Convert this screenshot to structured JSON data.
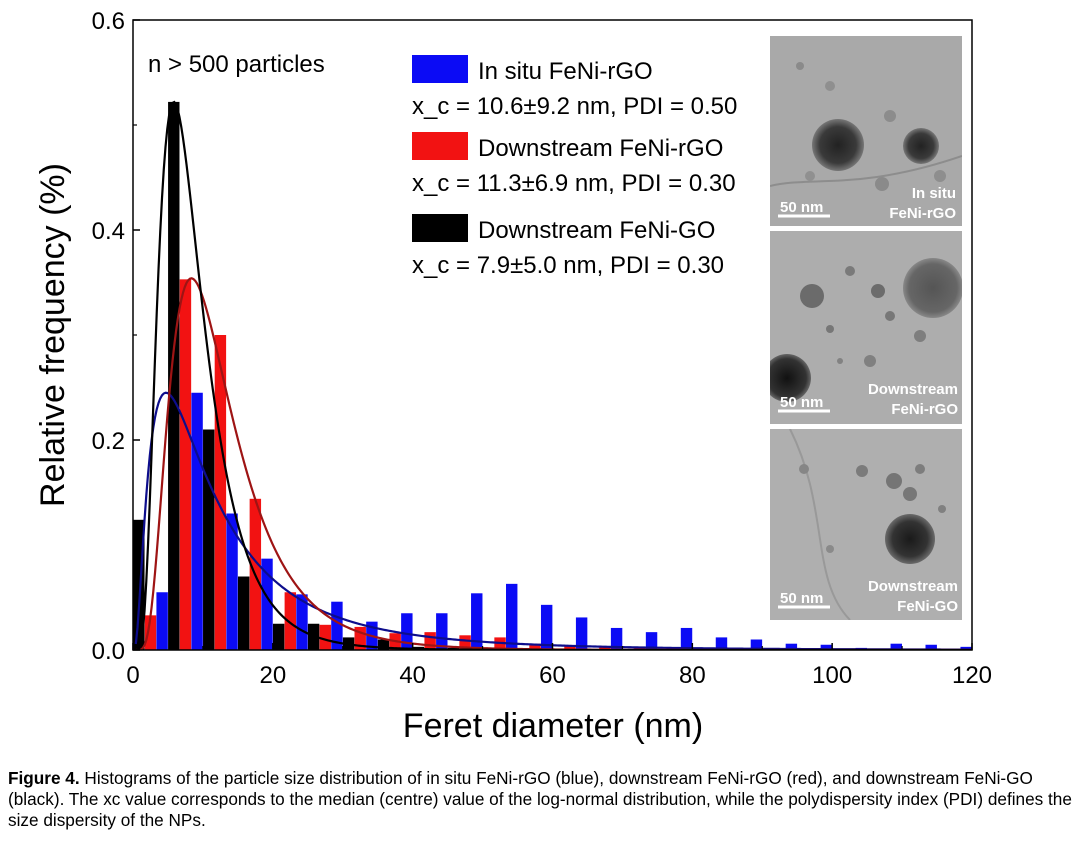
{
  "chart_data": {
    "type": "bar",
    "xlabel": "Feret diameter (nm)",
    "ylabel": "Relative frequency (%)",
    "xlim": [
      0,
      120
    ],
    "ylim": [
      0,
      0.6
    ],
    "xticks": [
      "0",
      "20",
      "40",
      "60",
      "80",
      "100",
      "120"
    ],
    "yticks": [
      "0.0",
      "0.2",
      "0.4",
      "0.6"
    ],
    "annotation": "n > 500 particles",
    "bin_centers": [
      2.5,
      7.5,
      12.5,
      17.5,
      22.5,
      27.5,
      32.5,
      37.5,
      42.5,
      47.5,
      52.5,
      57.5,
      62.5,
      67.5,
      72.5,
      77.5,
      82.5,
      87.5,
      92.5,
      97.5,
      102.5,
      107.5,
      112.5,
      117.5
    ],
    "series": [
      {
        "name": "In situ FeNi-rGO",
        "stats": "x_c = 10.6±9.2 nm, PDI = 0.50",
        "color": "#0b0bf5",
        "fit_color": "#0d0d8c",
        "fit": {
          "median": 10.6,
          "sigma": 0.9,
          "peak": 0.245
        },
        "values": [
          0.055,
          0.245,
          0.13,
          0.087,
          0.053,
          0.046,
          0.027,
          0.035,
          0.035,
          0.054,
          0.063,
          0.043,
          0.031,
          0.021,
          0.017,
          0.021,
          0.012,
          0.01,
          0.006,
          0.005,
          0.002,
          0.006,
          0.005,
          0.003
        ]
      },
      {
        "name": "Downstream FeNi-rGO",
        "stats": "x_c = 11.3±6.9 nm, PDI = 0.30",
        "color": "#f21212",
        "fit_color": "#9e1414",
        "fit": {
          "median": 11.3,
          "sigma": 0.55,
          "peak": 0.354
        },
        "values": [
          0.033,
          0.353,
          0.3,
          0.144,
          0.055,
          0.024,
          0.022,
          0.016,
          0.017,
          0.014,
          0.012,
          0.006,
          0.004,
          0.003,
          0.002,
          0.002,
          0.001,
          0.001,
          0.001,
          0.0,
          0.0,
          0.0,
          0.0,
          0.0
        ]
      },
      {
        "name": "Downstream FeNi-GO",
        "stats": "x_c = 7.9±5.0 nm, PDI = 0.30",
        "color": "#000000",
        "fit_color": "#000000",
        "fit": {
          "median": 7.9,
          "sigma": 0.55,
          "peak": 0.522
        },
        "values": [
          0.124,
          0.522,
          0.21,
          0.07,
          0.025,
          0.025,
          0.012,
          0.01,
          0.003,
          0.002,
          0.001,
          0.0,
          0.0,
          0.0,
          0.0,
          0.0,
          0.0,
          0.0,
          0.0,
          0.0,
          0.0,
          0.0,
          0.0,
          0.0
        ]
      }
    ]
  },
  "tem_images": [
    {
      "scale_bar": "50 nm",
      "label_line1": "In situ",
      "label_line2": "FeNi-rGO"
    },
    {
      "scale_bar": "50 nm",
      "label_line1": "Downstream",
      "label_line2": "FeNi-rGO"
    },
    {
      "scale_bar": "50 nm",
      "label_line1": "Downstream",
      "label_line2": "FeNi-GO"
    }
  ],
  "caption": {
    "label": "Figure 4.",
    "text": "Histograms of the particle size distribution of in situ FeNi-rGO (blue), downstream FeNi-rGO (red), and downstream FeNi-GO (black). The xc value corresponds to the median (centre) value of the log-normal distribution, while the polydispersity index (PDI) defines the size dispersity of the NPs."
  }
}
